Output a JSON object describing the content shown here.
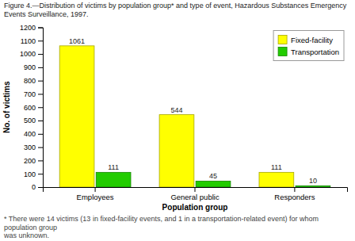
{
  "chart_data": {
    "type": "bar",
    "title": "Figure 4.—Distribution of victims by population group* and type of event, Hazardous Substances Emergency\nEvents Surveillance, 1997.",
    "footnote": "* There were 14 victims (13 in fixed-facility events, and 1 in a transportation-related event) for whom population group\nwas unknown.",
    "categories": [
      "Employees",
      "General public",
      "Responders"
    ],
    "series": [
      {
        "name": "Fixed-facility",
        "color": "#FFFF00",
        "values": [
          1061,
          544,
          111
        ]
      },
      {
        "name": "Transportation",
        "color": "#22CC00",
        "values": [
          111,
          45,
          10
        ]
      }
    ],
    "xlabel": "Population group",
    "ylabel": "No. of victims",
    "ylim": [
      0,
      1200
    ],
    "yticks": [
      0,
      100,
      200,
      300,
      400,
      500,
      600,
      700,
      800,
      900,
      1000,
      1100,
      1200
    ],
    "legend": "upper right",
    "data_labels": true,
    "grid": false
  }
}
